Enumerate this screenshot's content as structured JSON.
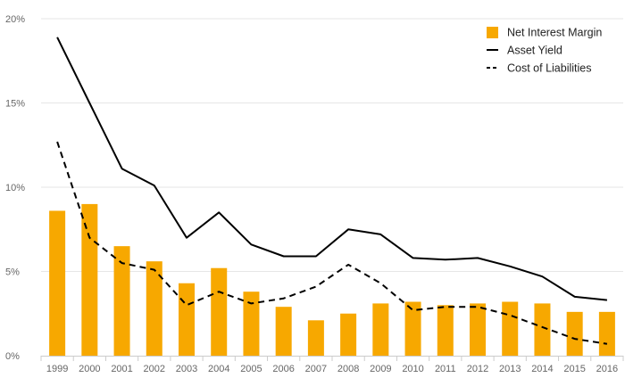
{
  "chart_data": {
    "type": "bar",
    "title": "",
    "xlabel": "",
    "ylabel": "",
    "categories": [
      "1999",
      "2000",
      "2001",
      "2002",
      "2003",
      "2004",
      "2005",
      "2006",
      "2007",
      "2008",
      "2009",
      "2010",
      "2011",
      "2012",
      "2013",
      "2014",
      "2015",
      "2016"
    ],
    "ylim": [
      0,
      20
    ],
    "yticks": [
      0,
      5,
      10,
      15,
      20
    ],
    "ytick_labels": [
      "0%",
      "5%",
      "10%",
      "15%",
      "20%"
    ],
    "grid": true,
    "legend_position": "top-right",
    "series": [
      {
        "name": "Net Interest Margin",
        "kind": "bar",
        "color": "#F7A800",
        "values": [
          8.6,
          9.0,
          6.5,
          5.6,
          4.3,
          5.2,
          3.8,
          2.9,
          2.1,
          2.5,
          3.1,
          3.2,
          3.0,
          3.1,
          3.2,
          3.1,
          2.6,
          2.6
        ]
      },
      {
        "name": "Asset Yield",
        "kind": "line",
        "style": "solid",
        "color": "#000000",
        "values": [
          18.9,
          15.0,
          11.1,
          10.1,
          7.0,
          8.5,
          6.6,
          5.9,
          5.9,
          7.5,
          7.2,
          5.8,
          5.7,
          5.8,
          5.3,
          4.7,
          3.5,
          3.3
        ]
      },
      {
        "name": "Cost of Liabilities",
        "kind": "line",
        "style": "dashed",
        "color": "#000000",
        "values": [
          12.7,
          7.0,
          5.5,
          5.1,
          3.0,
          3.8,
          3.1,
          3.4,
          4.1,
          5.4,
          4.3,
          2.7,
          2.9,
          2.9,
          2.4,
          1.7,
          1.0,
          0.7
        ]
      }
    ]
  }
}
